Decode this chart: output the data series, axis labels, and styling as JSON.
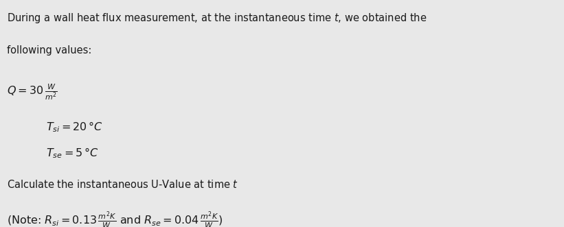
{
  "background_color": "#e8e8e8",
  "text_color": "#1a1a1a",
  "fig_width": 8.21,
  "fig_height": 3.31,
  "dpi": 100,
  "fontsize": 10.5
}
